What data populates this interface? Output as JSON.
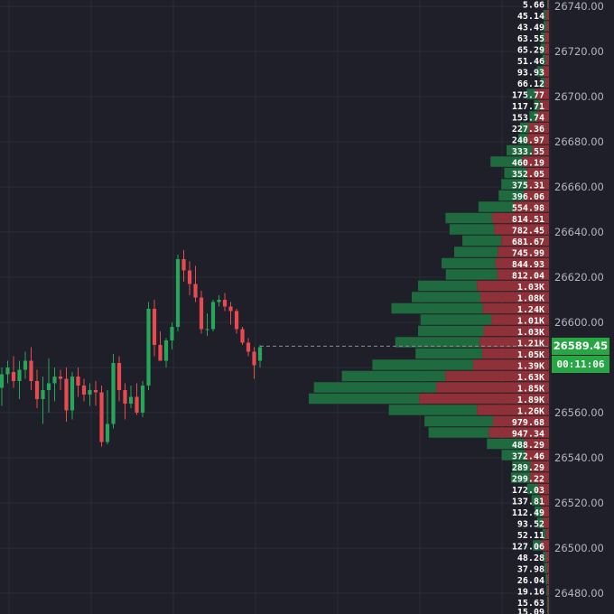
{
  "chart_data": {
    "type": "candlestick-with-volume-profile",
    "colors": {
      "up": "#26a65b",
      "down": "#e84a4f",
      "profile_buy": "#1f6b3f",
      "profile_sell": "#8f3138",
      "background": "#1e1f28",
      "grid": "#2b2c36",
      "axis_text": "#b2b5be",
      "price_tag": "#27a644"
    },
    "price_axis": {
      "range": [
        26477,
        26741
      ],
      "ticks": [
        26740,
        26720,
        26700,
        26680,
        26660,
        26640,
        26620,
        26600,
        26580,
        26560,
        26540,
        26520,
        26500,
        26480
      ],
      "tick_labels": [
        "26740.00",
        "26720.00",
        "26700.00",
        "26680.00",
        "26660.00",
        "26640.00",
        "26620.00",
        "26600.00",
        "26580.00",
        "26560.00",
        "26540.00",
        "26520.00",
        "26500.00",
        "26480.00"
      ]
    },
    "current_price": {
      "value": 26589.45,
      "label": "26589.45",
      "countdown": "00:11:06"
    },
    "candles": [
      {
        "o": 26571,
        "h": 26580,
        "l": 26563,
        "c": 26577
      },
      {
        "o": 26577,
        "h": 26583,
        "l": 26573,
        "c": 26580
      },
      {
        "o": 26578,
        "h": 26585,
        "l": 26571,
        "c": 26574
      },
      {
        "o": 26574,
        "h": 26583,
        "l": 26566,
        "c": 26579
      },
      {
        "o": 26579,
        "h": 26587,
        "l": 26575,
        "c": 26583
      },
      {
        "o": 26583,
        "h": 26589,
        "l": 26570,
        "c": 26574
      },
      {
        "o": 26574,
        "h": 26579,
        "l": 26562,
        "c": 26566
      },
      {
        "o": 26566,
        "h": 26576,
        "l": 26555,
        "c": 26570
      },
      {
        "o": 26570,
        "h": 26584,
        "l": 26560,
        "c": 26573
      },
      {
        "o": 26573,
        "h": 26580,
        "l": 26565,
        "c": 26576
      },
      {
        "o": 26576,
        "h": 26579,
        "l": 26570,
        "c": 26575
      },
      {
        "o": 26575,
        "h": 26580,
        "l": 26556,
        "c": 26561
      },
      {
        "o": 26561,
        "h": 26578,
        "l": 26557,
        "c": 26576
      },
      {
        "o": 26576,
        "h": 26580,
        "l": 26567,
        "c": 26572
      },
      {
        "o": 26572,
        "h": 26575,
        "l": 26565,
        "c": 26568
      },
      {
        "o": 26568,
        "h": 26573,
        "l": 26563,
        "c": 26570
      },
      {
        "o": 26570,
        "h": 26574,
        "l": 26563,
        "c": 26569
      },
      {
        "o": 26569,
        "h": 26572,
        "l": 26545,
        "c": 26547
      },
      {
        "o": 26547,
        "h": 26570,
        "l": 26546,
        "c": 26555
      },
      {
        "o": 26555,
        "h": 26586,
        "l": 26553,
        "c": 26582
      },
      {
        "o": 26582,
        "h": 26585,
        "l": 26565,
        "c": 26570
      },
      {
        "o": 26570,
        "h": 26573,
        "l": 26557,
        "c": 26564
      },
      {
        "o": 26564,
        "h": 26572,
        "l": 26562,
        "c": 26567
      },
      {
        "o": 26567,
        "h": 26573,
        "l": 26559,
        "c": 26560
      },
      {
        "o": 26560,
        "h": 26574,
        "l": 26558,
        "c": 26572
      },
      {
        "o": 26572,
        "h": 26609,
        "l": 26570,
        "c": 26606
      },
      {
        "o": 26606,
        "h": 26610,
        "l": 26585,
        "c": 26590
      },
      {
        "o": 26590,
        "h": 26596,
        "l": 26583,
        "c": 26583
      },
      {
        "o": 26583,
        "h": 26593,
        "l": 26580,
        "c": 26592
      },
      {
        "o": 26592,
        "h": 26600,
        "l": 26588,
        "c": 26598
      },
      {
        "o": 26598,
        "h": 26630,
        "l": 26596,
        "c": 26628
      },
      {
        "o": 26628,
        "h": 26632,
        "l": 26618,
        "c": 26623
      },
      {
        "o": 26623,
        "h": 26627,
        "l": 26612,
        "c": 26617
      },
      {
        "o": 26617,
        "h": 26625,
        "l": 26609,
        "c": 26611
      },
      {
        "o": 26611,
        "h": 26614,
        "l": 26595,
        "c": 26597
      },
      {
        "o": 26597,
        "h": 26604,
        "l": 26594,
        "c": 26597
      },
      {
        "o": 26597,
        "h": 26610,
        "l": 26596,
        "c": 26609
      },
      {
        "o": 26609,
        "h": 26612,
        "l": 26607,
        "c": 26610
      },
      {
        "o": 26610,
        "h": 26613,
        "l": 26605,
        "c": 26607
      },
      {
        "o": 26607,
        "h": 26609,
        "l": 26599,
        "c": 26605
      },
      {
        "o": 26605,
        "h": 26606,
        "l": 26595,
        "c": 26597
      },
      {
        "o": 26597,
        "h": 26598,
        "l": 26590,
        "c": 26591
      },
      {
        "o": 26591,
        "h": 26593,
        "l": 26585,
        "c": 26587
      },
      {
        "o": 26587,
        "h": 26589,
        "l": 26575,
        "c": 26581
      },
      {
        "o": 26583,
        "h": 26590,
        "l": 26580,
        "c": 26589
      }
    ],
    "volume_profile": [
      {
        "price": 26741,
        "label": "5.66",
        "total": 5.66,
        "buy_share": 0.5
      },
      {
        "price": 26736,
        "label": "45.14",
        "total": 45.14,
        "buy_share": 0.5
      },
      {
        "price": 26731,
        "label": "43.49",
        "total": 43.49,
        "buy_share": 0.5
      },
      {
        "price": 26726,
        "label": "63.55",
        "total": 63.55,
        "buy_share": 0.5
      },
      {
        "price": 26721,
        "label": "65.29",
        "total": 65.29,
        "buy_share": 0.5
      },
      {
        "price": 26716,
        "label": "51.46",
        "total": 51.46,
        "buy_share": 0.5
      },
      {
        "price": 26711,
        "label": "93.93",
        "total": 93.93,
        "buy_share": 0.5
      },
      {
        "price": 26706,
        "label": "66.12",
        "total": 66.12,
        "buy_share": 0.5
      },
      {
        "price": 26701,
        "label": "175.77",
        "total": 175.77,
        "buy_share": 0.4
      },
      {
        "price": 26696,
        "label": "117.71",
        "total": 117.71,
        "buy_share": 0.4
      },
      {
        "price": 26691,
        "label": "153.74",
        "total": 153.74,
        "buy_share": 0.4
      },
      {
        "price": 26686,
        "label": "227.36",
        "total": 227.36,
        "buy_share": 0.3
      },
      {
        "price": 26681,
        "label": "240.97",
        "total": 240.97,
        "buy_share": 0.3
      },
      {
        "price": 26676,
        "label": "333.55",
        "total": 333.55,
        "buy_share": 0.6
      },
      {
        "price": 26671,
        "label": "460.19",
        "total": 460.19,
        "buy_share": 0.55
      },
      {
        "price": 26666,
        "label": "352.05",
        "total": 352.05,
        "buy_share": 0.5
      },
      {
        "price": 26661,
        "label": "375.31",
        "total": 375.31,
        "buy_share": 0.55
      },
      {
        "price": 26656,
        "label": "396.06",
        "total": 396.06,
        "buy_share": 0.5
      },
      {
        "price": 26651,
        "label": "554.98",
        "total": 554.98,
        "buy_share": 0.5
      },
      {
        "price": 26646,
        "label": "814.51",
        "total": 814.51,
        "buy_share": 0.45
      },
      {
        "price": 26641,
        "label": "782.45",
        "total": 782.45,
        "buy_share": 0.45
      },
      {
        "price": 26636,
        "label": "681.67",
        "total": 681.67,
        "buy_share": 0.45
      },
      {
        "price": 26631,
        "label": "745.99",
        "total": 745.99,
        "buy_share": 0.46
      },
      {
        "price": 26626,
        "label": "844.93",
        "total": 844.93,
        "buy_share": 0.5
      },
      {
        "price": 26621,
        "label": "812.04",
        "total": 812.04,
        "buy_share": 0.5
      },
      {
        "price": 26616,
        "label": "1.03K",
        "total": 1030,
        "buy_share": 0.45
      },
      {
        "price": 26611,
        "label": "1.08K",
        "total": 1080,
        "buy_share": 0.5
      },
      {
        "price": 26606,
        "label": "1.24K",
        "total": 1240,
        "buy_share": 0.58
      },
      {
        "price": 26601,
        "label": "1.01K",
        "total": 1010,
        "buy_share": 0.55
      },
      {
        "price": 26596,
        "label": "1.03K",
        "total": 1030,
        "buy_share": 0.5
      },
      {
        "price": 26591,
        "label": "1.21K",
        "total": 1210,
        "buy_share": 0.55
      },
      {
        "price": 26586,
        "label": "1.05K",
        "total": 1050,
        "buy_share": 0.5
      },
      {
        "price": 26581,
        "label": "1.39K",
        "total": 1390,
        "buy_share": 0.57
      },
      {
        "price": 26576,
        "label": "1.63K",
        "total": 1630,
        "buy_share": 0.5
      },
      {
        "price": 26571,
        "label": "1.85K",
        "total": 1850,
        "buy_share": 0.52
      },
      {
        "price": 26566,
        "label": "1.89K",
        "total": 1890,
        "buy_share": 0.46
      },
      {
        "price": 26561,
        "label": "1.26K",
        "total": 1260,
        "buy_share": 0.55
      },
      {
        "price": 26556,
        "label": "979.68",
        "total": 979.68,
        "buy_share": 0.55
      },
      {
        "price": 26551,
        "label": "947.34",
        "total": 947.34,
        "buy_share": 0.5
      },
      {
        "price": 26546,
        "label": "488.29",
        "total": 488.29,
        "buy_share": 0.6
      },
      {
        "price": 26541,
        "label": "372.46",
        "total": 372.46,
        "buy_share": 0.5
      },
      {
        "price": 26536,
        "label": "289.29",
        "total": 289.29,
        "buy_share": 0.5
      },
      {
        "price": 26531,
        "label": "299.22",
        "total": 299.22,
        "buy_share": 0.5
      },
      {
        "price": 26526,
        "label": "172.03",
        "total": 172.03,
        "buy_share": 0.5
      },
      {
        "price": 26521,
        "label": "137.81",
        "total": 137.81,
        "buy_share": 0.5
      },
      {
        "price": 26516,
        "label": "112.49",
        "total": 112.49,
        "buy_share": 0.5
      },
      {
        "price": 26511,
        "label": "93.52",
        "total": 93.52,
        "buy_share": 0.5
      },
      {
        "price": 26506,
        "label": "52.11",
        "total": 52.11,
        "buy_share": 0.5
      },
      {
        "price": 26501,
        "label": "127.06",
        "total": 127.06,
        "buy_share": 0.5
      },
      {
        "price": 26496,
        "label": "48.28",
        "total": 48.28,
        "buy_share": 0.5
      },
      {
        "price": 26491,
        "label": "37.98",
        "total": 37.98,
        "buy_share": 0.5
      },
      {
        "price": 26486,
        "label": "26.04",
        "total": 26.04,
        "buy_share": 0.5
      },
      {
        "price": 26481,
        "label": "19.16",
        "total": 19.16,
        "buy_share": 0.5
      },
      {
        "price": 26476,
        "label": "15.63",
        "total": 15.63,
        "buy_share": 0.5
      },
      {
        "price": 26472,
        "label": "15.09",
        "total": 15.09,
        "buy_share": 0.5
      }
    ]
  }
}
